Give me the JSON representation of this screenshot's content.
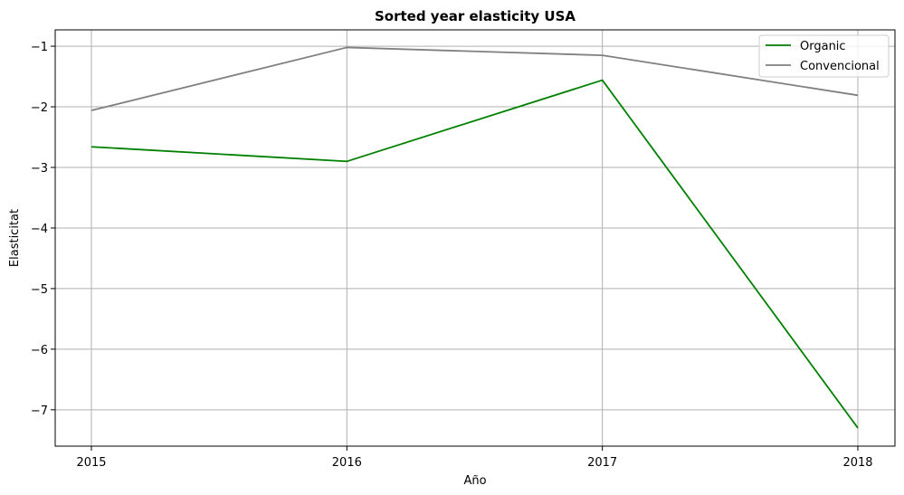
{
  "chart_data": {
    "type": "line",
    "title": "Sorted year elasticity USA",
    "xlabel": "Año",
    "ylabel": "Elasticitat",
    "x": [
      "2015",
      "2016",
      "2017",
      "2018"
    ],
    "yticks": [
      "−7",
      "−6",
      "−5",
      "−4",
      "−3",
      "−2",
      "−1"
    ],
    "ylim": [
      -7.6,
      -0.73
    ],
    "grid": true,
    "legend_position": "top-right",
    "series": [
      {
        "name": "Organic",
        "color": "#008000",
        "values": [
          -2.66,
          -2.9,
          -1.56,
          -7.3
        ]
      },
      {
        "name": "Convencional",
        "color": "#808080",
        "values": [
          -2.06,
          -1.02,
          -1.15,
          -1.81
        ]
      }
    ]
  }
}
